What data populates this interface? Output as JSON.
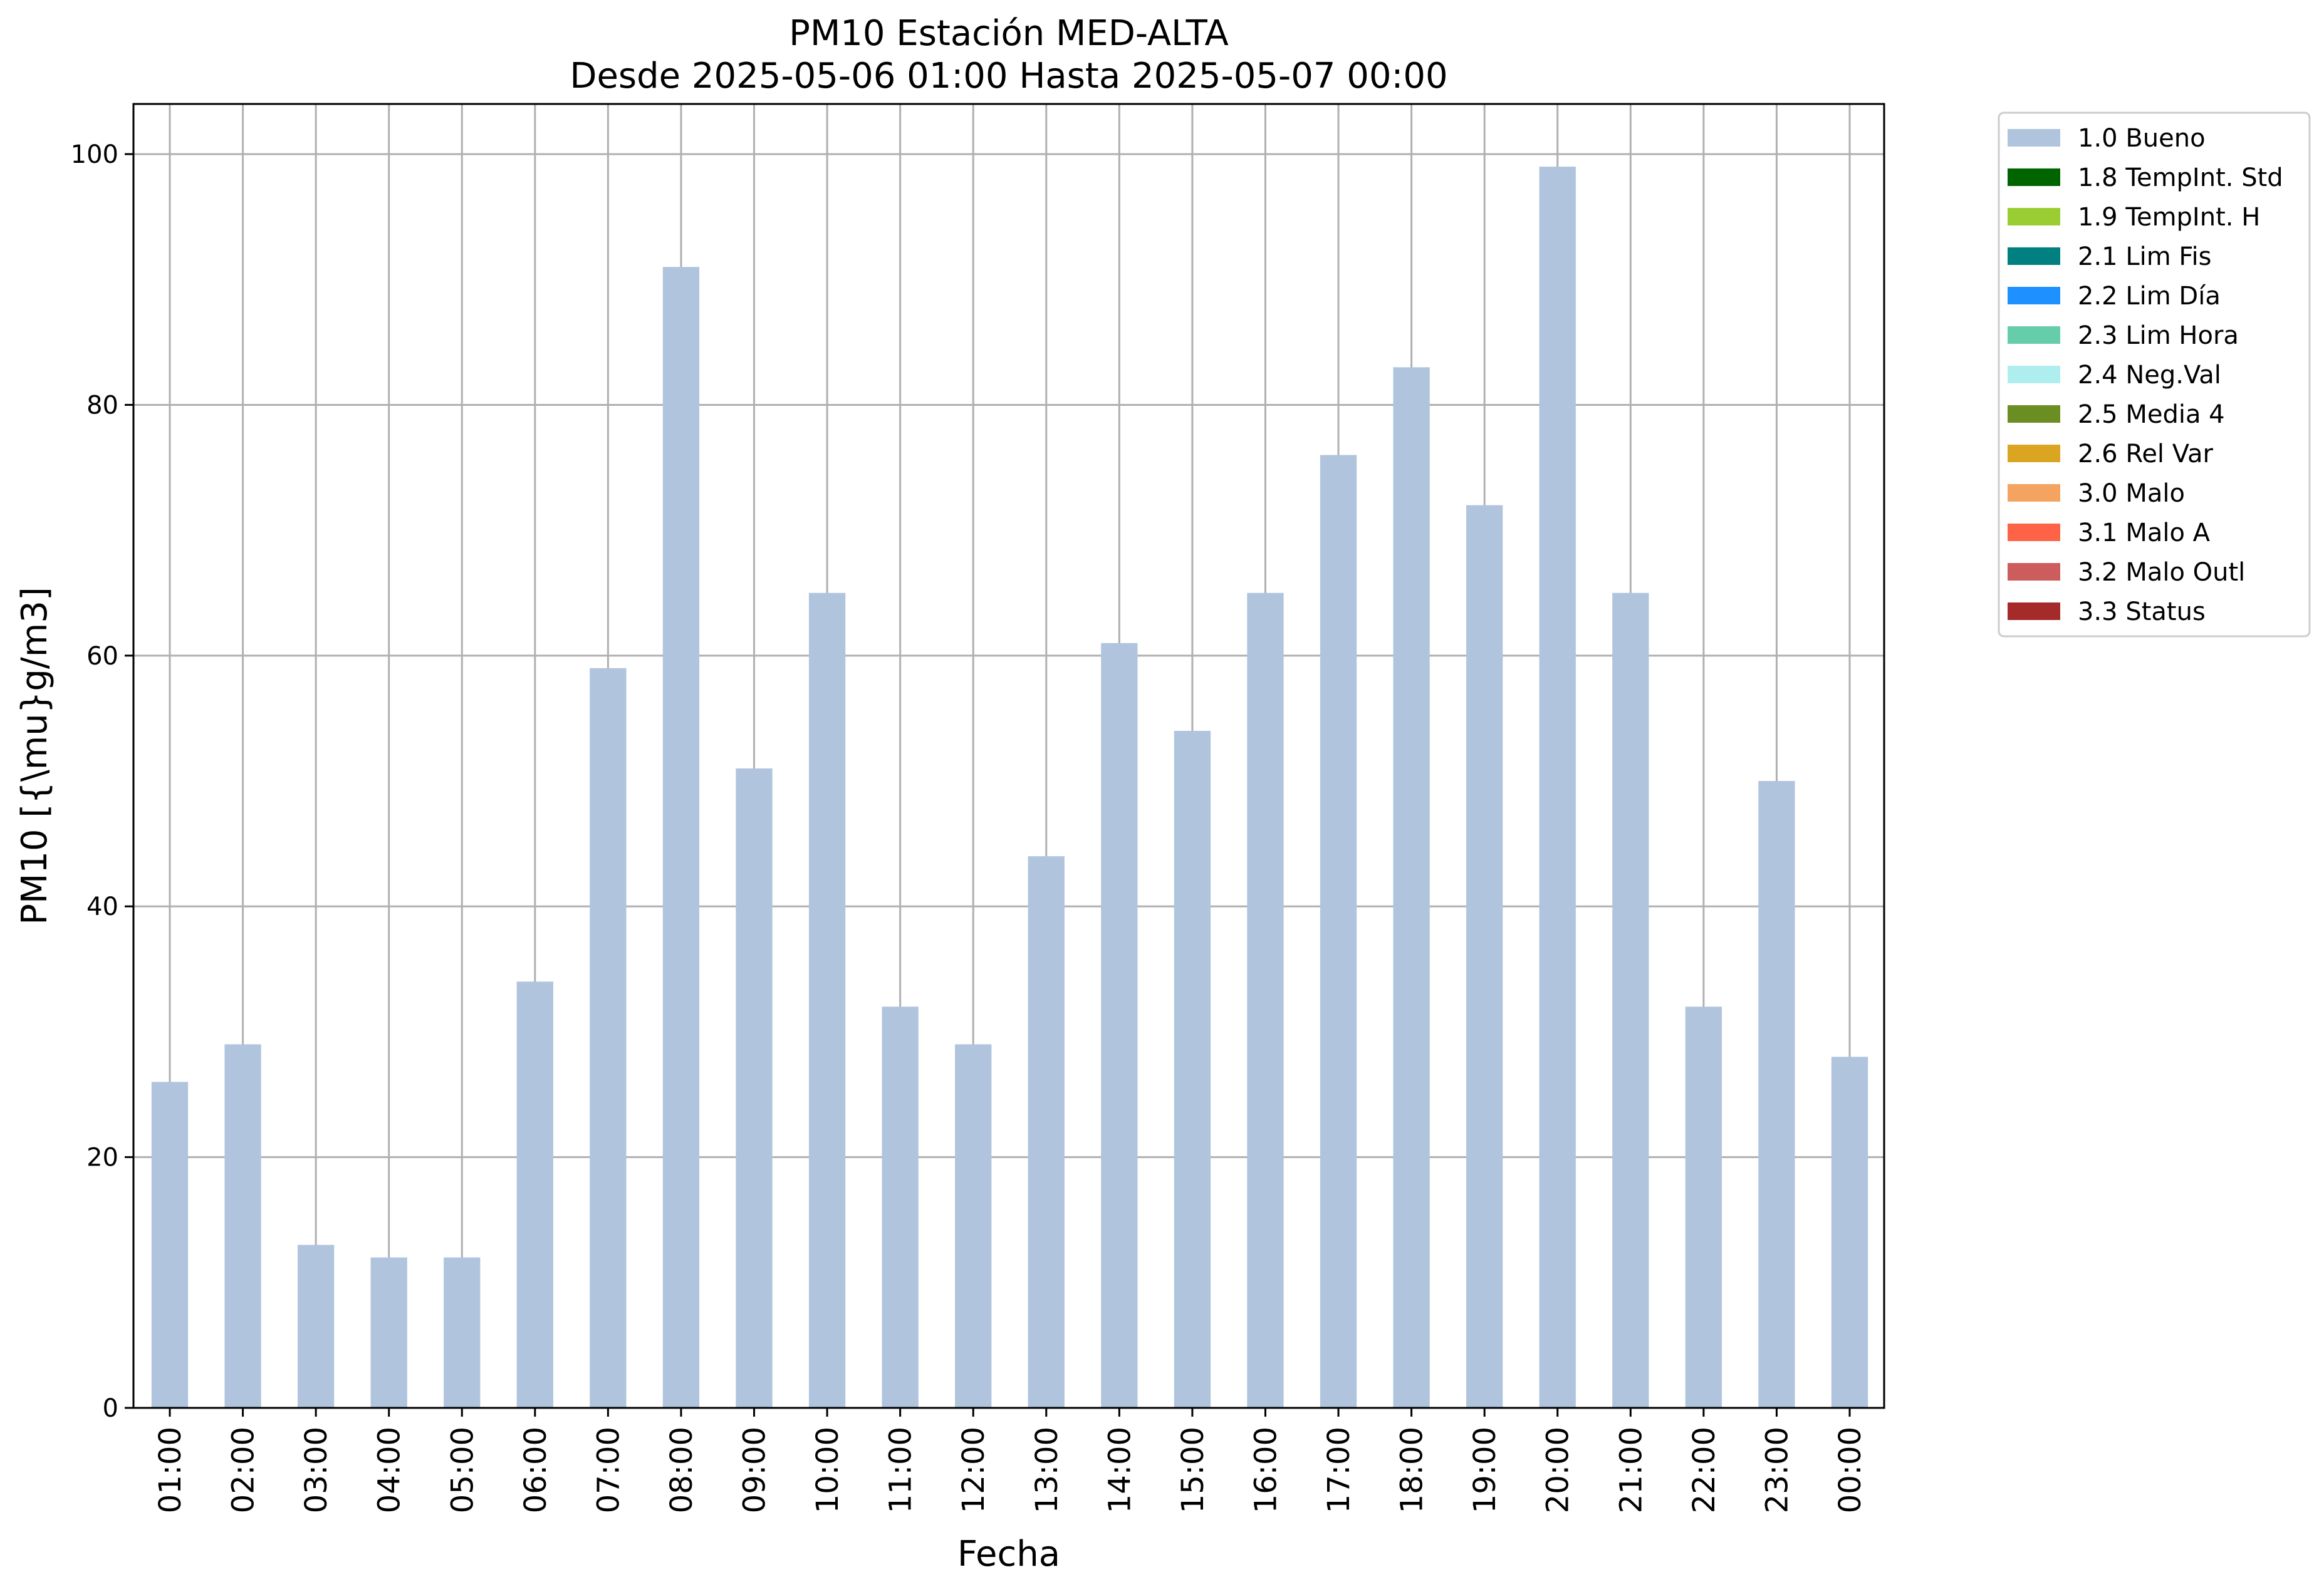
{
  "chart_data": {
    "type": "bar",
    "title": "PM10 Estación MED-ALTA",
    "subtitle": "Desde 2025-05-06 01:00 Hasta 2025-05-07 00:00",
    "xlabel": "Fecha",
    "ylabel": "PM10 [{\\mu}g/m3]",
    "ylim": [
      0,
      104
    ],
    "yticks": [
      0,
      20,
      40,
      60,
      80,
      100
    ],
    "grid": true,
    "legend_position": "outside-right",
    "categories": [
      "01:00",
      "02:00",
      "03:00",
      "04:00",
      "05:00",
      "06:00",
      "07:00",
      "08:00",
      "09:00",
      "10:00",
      "11:00",
      "12:00",
      "13:00",
      "14:00",
      "15:00",
      "16:00",
      "17:00",
      "18:00",
      "19:00",
      "20:00",
      "21:00",
      "22:00",
      "23:00",
      "00:00"
    ],
    "series": [
      {
        "name": "1.0 Bueno",
        "color": "#b0c4de",
        "values": [
          26,
          29,
          13,
          12,
          12,
          34,
          59,
          91,
          51,
          65,
          32,
          29,
          44,
          61,
          54,
          65,
          76,
          83,
          72,
          99,
          65,
          32,
          50,
          28
        ]
      }
    ],
    "legend": [
      {
        "label": "1.0 Bueno",
        "color": "#b0c4de"
      },
      {
        "label": "1.8 TempInt. Std",
        "color": "#006400"
      },
      {
        "label": "1.9 TempInt. H",
        "color": "#9acd32"
      },
      {
        "label": "2.1 Lim Fis",
        "color": "#008080"
      },
      {
        "label": "2.2 Lim Día",
        "color": "#1e90ff"
      },
      {
        "label": "2.3 Lim Hora",
        "color": "#66cdaa"
      },
      {
        "label": "2.4 Neg.Val",
        "color": "#afeeee"
      },
      {
        "label": "2.5 Media 4",
        "color": "#6b8e23"
      },
      {
        "label": "2.6 Rel Var",
        "color": "#daa520"
      },
      {
        "label": "3.0 Malo",
        "color": "#f4a460"
      },
      {
        "label": "3.1 Malo A",
        "color": "#ff6347"
      },
      {
        "label": "3.2 Malo Outl",
        "color": "#cd5c5c"
      },
      {
        "label": "3.3 Status",
        "color": "#a52a2a"
      }
    ]
  }
}
